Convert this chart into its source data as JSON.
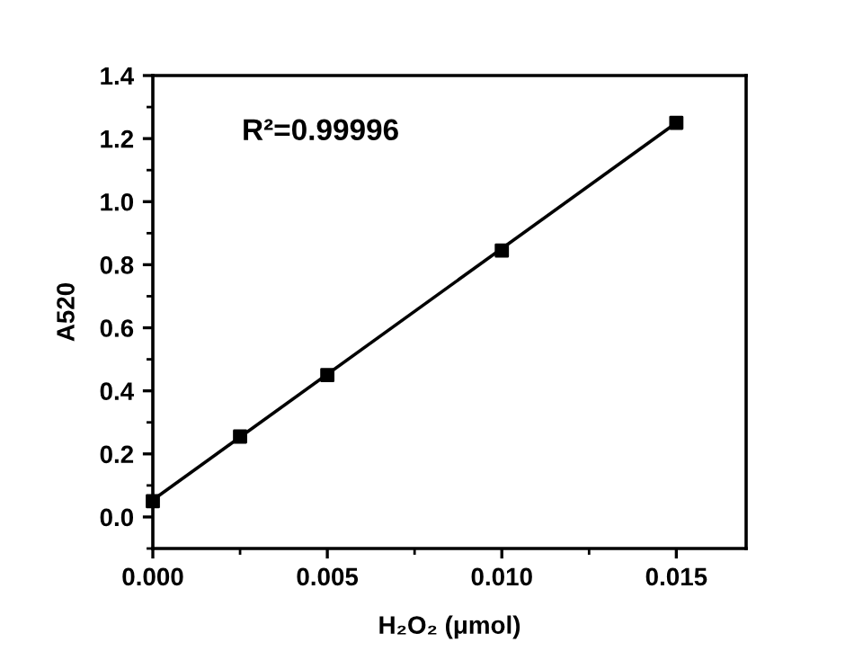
{
  "chart_data": {
    "type": "scatter",
    "xlabel": "H₂O₂ (μmol)",
    "ylabel": "A520",
    "annotations": [
      "R²=0.99996"
    ],
    "xlim": [
      0,
      0.017
    ],
    "xticks": [
      {
        "value": 0,
        "label": "0.000"
      },
      {
        "value": 0.005,
        "label": "0.005"
      },
      {
        "value": 0.01,
        "label": "0.010"
      },
      {
        "value": 0.015,
        "label": "0.015"
      }
    ],
    "ylim": [
      -0.1,
      1.4
    ],
    "yticks": [
      {
        "value": 0,
        "label": "0.0"
      },
      {
        "value": 0.2,
        "label": "0.2"
      },
      {
        "value": 0.4,
        "label": "0.4"
      },
      {
        "value": 0.6,
        "label": "0.6"
      },
      {
        "value": 0.8,
        "label": "0.8"
      },
      {
        "value": 1.0,
        "label": "1.0"
      },
      {
        "value": 1.2,
        "label": "1.2"
      },
      {
        "value": 1.4,
        "label": "1.4"
      }
    ],
    "grid": false,
    "legend": false,
    "series": [
      {
        "marker": "square",
        "color": "#000000",
        "x": [
          0,
          0.0025,
          0.005,
          0.01,
          0.015
        ],
        "values": [
          0.05,
          0.255,
          0.45,
          0.845,
          1.25
        ]
      },
      {
        "type": "line",
        "marker": "none",
        "color": "#000000",
        "x": [
          0,
          0.015
        ],
        "values": [
          0.054,
          1.25
        ]
      }
    ]
  }
}
